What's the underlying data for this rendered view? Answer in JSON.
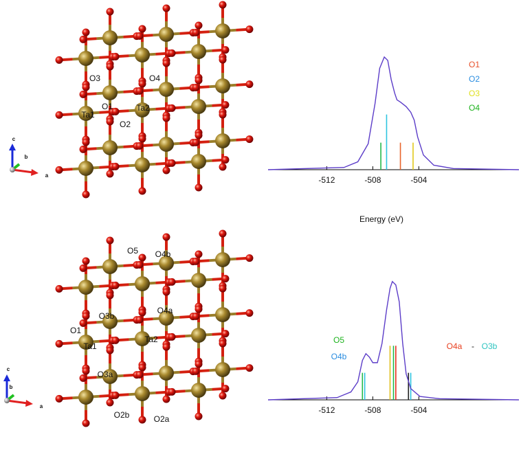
{
  "structures": [
    {
      "labels": [
        "O3",
        "O4",
        "O1",
        "Ta1",
        "Ta2",
        "O2"
      ],
      "axes": [
        "c",
        "b",
        "a"
      ]
    },
    {
      "labels": [
        "O5",
        "O4b",
        "O3b",
        "O4a",
        "O1",
        "Ta1",
        "Ta2",
        "O3a",
        "O2b",
        "O2a"
      ],
      "axes": [
        "c",
        "b",
        "a"
      ]
    }
  ],
  "chart_data": [
    {
      "type": "line",
      "xlabel": "Energy (eV)",
      "xlim": [
        -517.1,
        -495.3
      ],
      "ylim": [
        0,
        1.1
      ],
      "xticks": [
        -512,
        -508,
        -504
      ],
      "x": [
        -517.1,
        -510.5,
        -509.3,
        -508.4,
        -507.8,
        -507.4,
        -507.0,
        -506.7,
        -506.4,
        -506.1,
        -505.9,
        -505.6,
        -505.1,
        -504.7,
        -504.4,
        -504.1,
        -503.6,
        -502.7,
        -501.0,
        -495.3
      ],
      "series": [
        {
          "color": "#5b3cc8",
          "values": [
            0,
            0.02,
            0.07,
            0.23,
            0.59,
            0.9,
            1.0,
            0.97,
            0.8,
            0.68,
            0.62,
            0.6,
            0.56,
            0.51,
            0.44,
            0.29,
            0.13,
            0.04,
            0.01,
            0
          ]
        }
      ],
      "sticks": {
        "x": [
          -507.3,
          -506.8,
          -505.6,
          -504.5
        ],
        "values": [
          0.24,
          0.49,
          0.24,
          0.24
        ],
        "colors": [
          "#22b84a",
          "#2ec4e0",
          "#e8642a",
          "#e0c81a"
        ]
      },
      "annotations": [
        {
          "text": "O1",
          "color": "#e8502a"
        },
        {
          "text": "O2",
          "color": "#2a8de0"
        },
        {
          "text": "O3",
          "color": "#e0e020"
        },
        {
          "text": "O4",
          "color": "#1db31d"
        }
      ]
    },
    {
      "type": "line",
      "xlim": [
        -517.1,
        -495.3
      ],
      "ylim": [
        0,
        1.1
      ],
      "xticks": [
        -512,
        -508,
        -504
      ],
      "x": [
        -517.1,
        -511.1,
        -509.9,
        -509.3,
        -508.9,
        -508.6,
        -508.3,
        -508.0,
        -507.6,
        -507.2,
        -506.8,
        -506.5,
        -506.3,
        -506.0,
        -505.7,
        -505.4,
        -505.1,
        -504.7,
        -503.9,
        -502.2,
        -495.3
      ],
      "series": [
        {
          "color": "#5b3cc8",
          "values": [
            0,
            0.02,
            0.07,
            0.16,
            0.35,
            0.41,
            0.38,
            0.33,
            0.33,
            0.5,
            0.8,
            0.99,
            1.05,
            1.02,
            0.87,
            0.5,
            0.23,
            0.1,
            0.03,
            0.01,
            0
          ]
        }
      ],
      "sticks": {
        "x": [
          -508.9,
          -508.7,
          -506.5,
          -506.2,
          -506.0,
          -504.9,
          -504.7
        ],
        "values": [
          0.24,
          0.24,
          0.48,
          0.48,
          0.48,
          0.24,
          0.24
        ],
        "colors": [
          "#22b84a",
          "#2ec4e0",
          "#e0c01a",
          "#22b84a",
          "#e83020",
          "#222222",
          "#2ec4e0"
        ]
      },
      "annotations": [
        {
          "text": "O5",
          "color": "#1db31d"
        },
        {
          "text": "O4b",
          "color": "#2a8de0"
        },
        {
          "text": "O4a",
          "color": "#e84020"
        },
        {
          "text": "-",
          "color": "#222222"
        },
        {
          "text": "O3b",
          "color": "#2ec4c0"
        }
      ]
    }
  ]
}
